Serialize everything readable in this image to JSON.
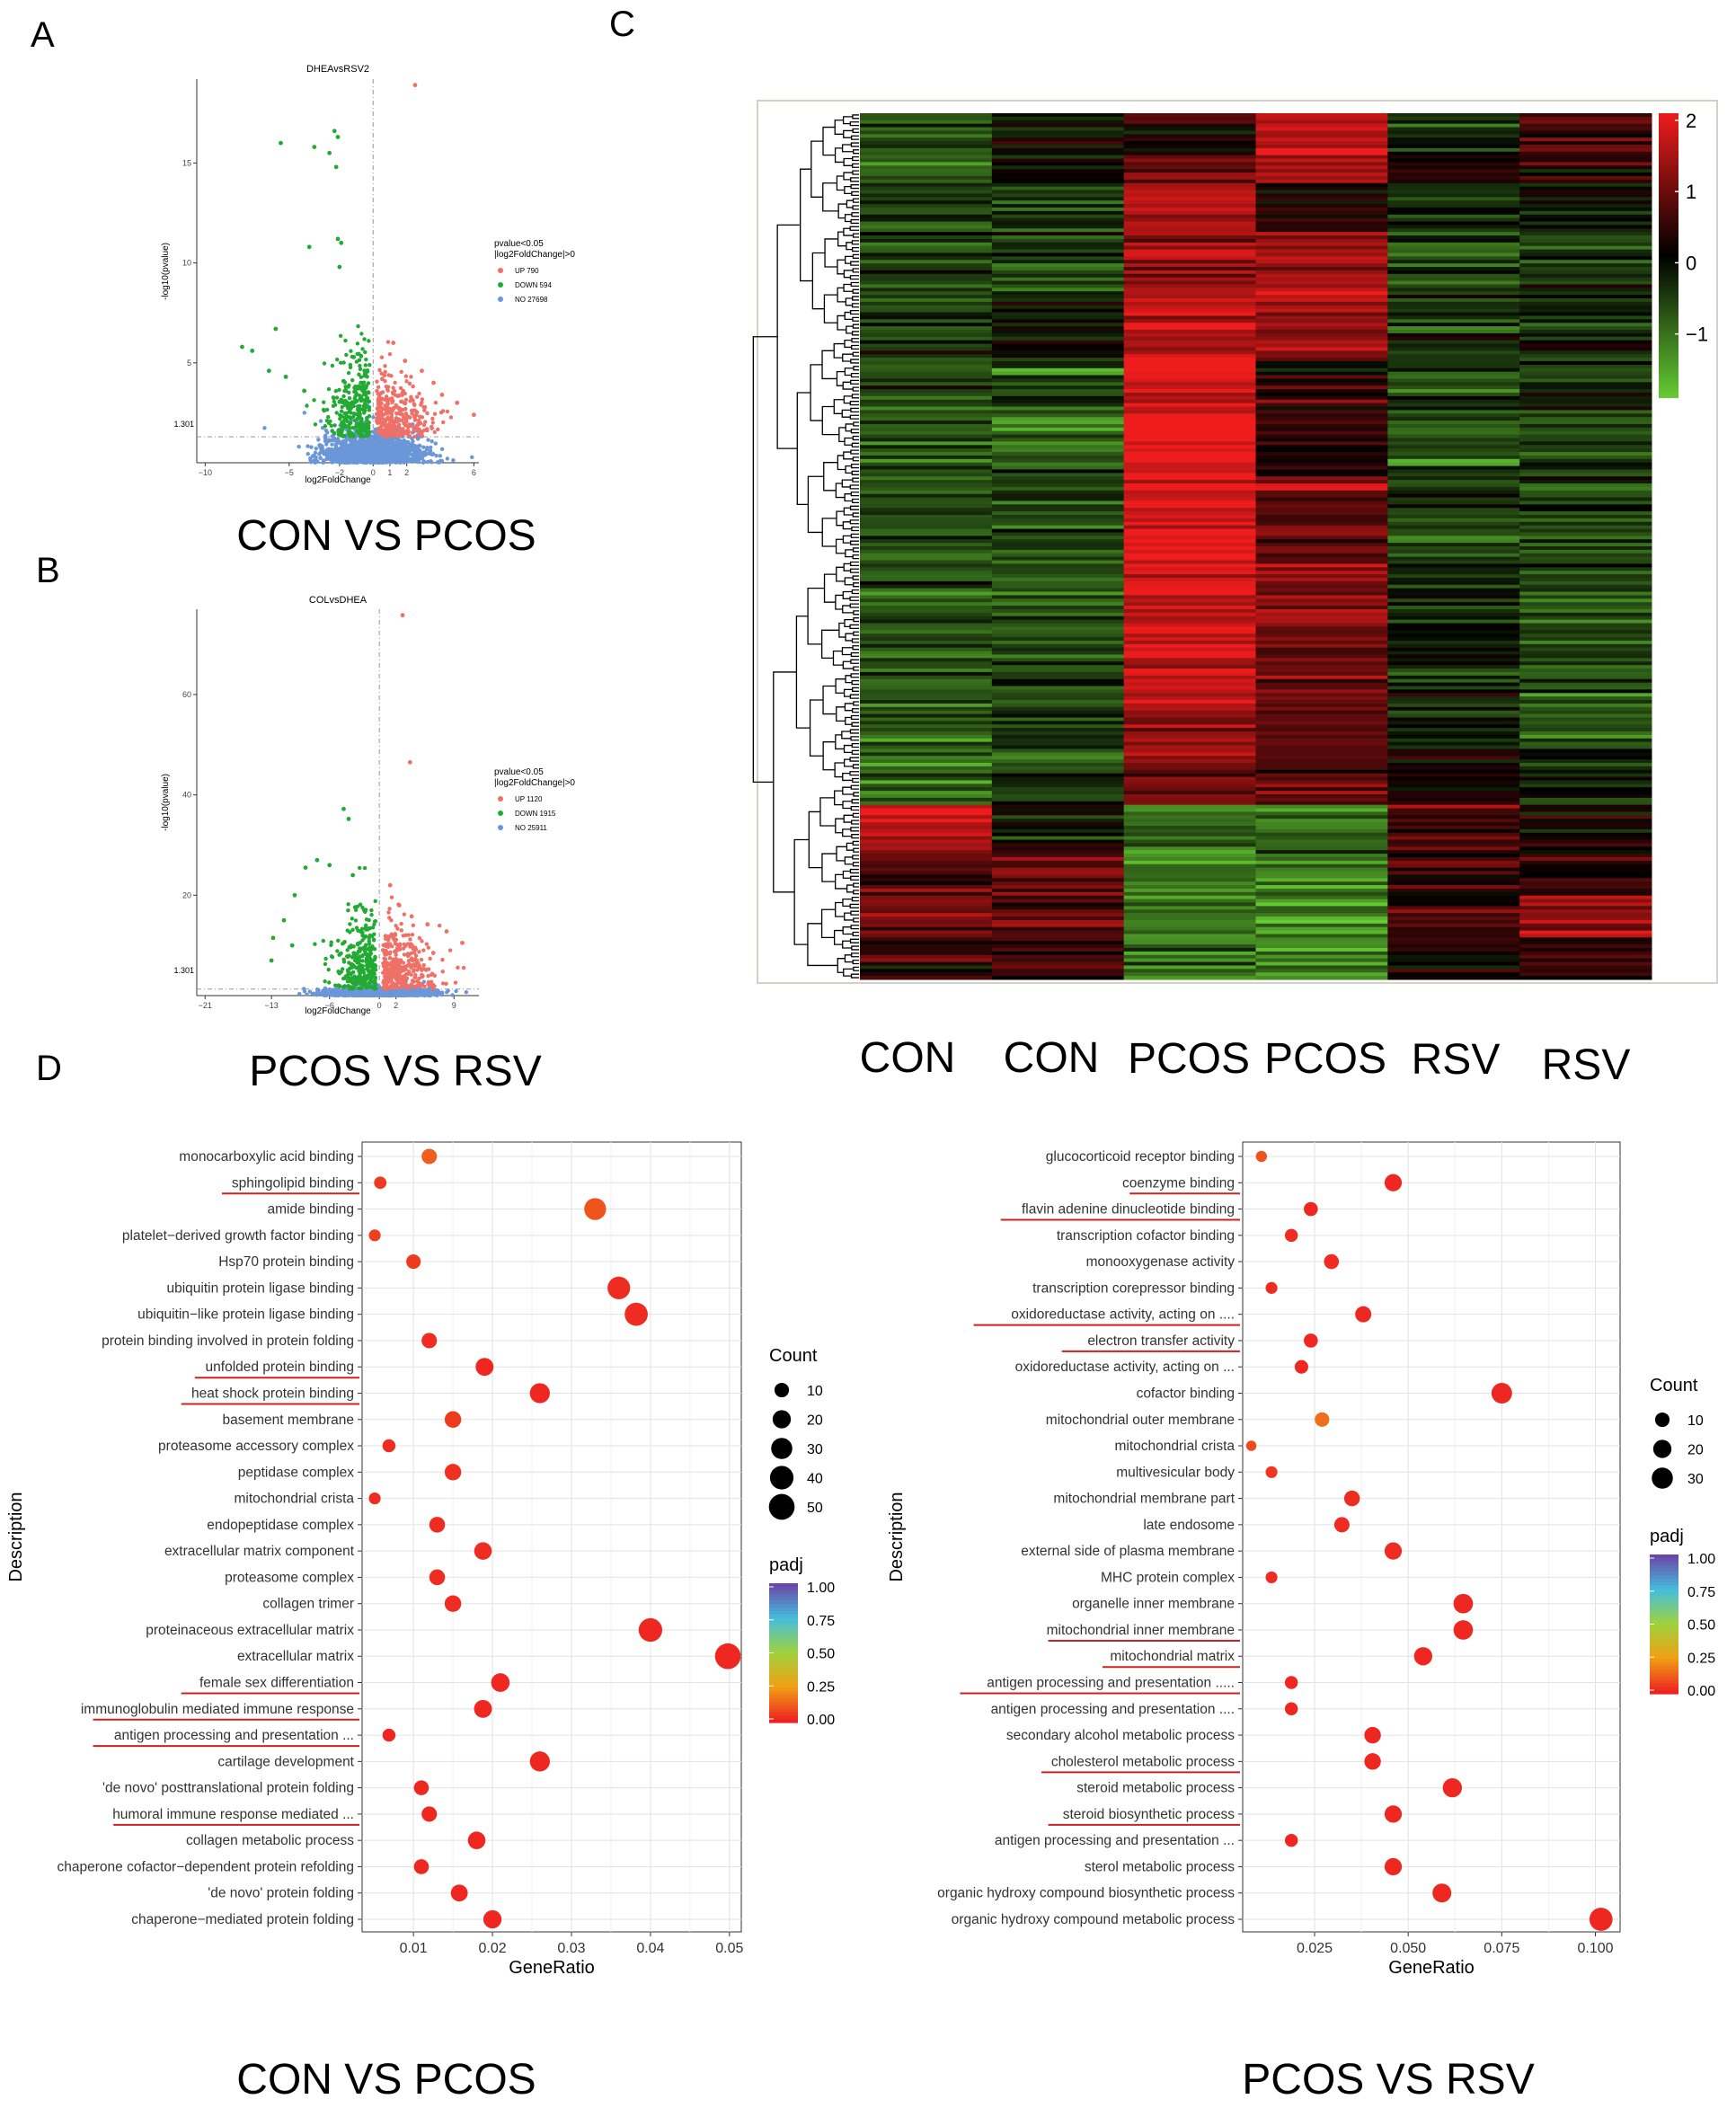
{
  "panel_letters": [
    "A",
    "B",
    "C",
    "D"
  ],
  "colors": {
    "up": "#ee7066",
    "down": "#22aa33",
    "no": "#6b96d8",
    "heat_low": "#66cc33",
    "heat_mid": "#000000",
    "heat_high": "#ee1c1c",
    "padj_low": "#ee2222",
    "padj_high": "#6a47a8"
  },
  "chart_data": [
    {
      "id": "A",
      "type": "scatter",
      "title": "DHEAvsRSV2",
      "xlabel": "log2FoldChange",
      "ylabel": "-log10(pvalue)",
      "xlim": [
        -10.5,
        6.3
      ],
      "ylim": [
        0,
        19.2
      ],
      "xticks": [
        -10,
        -5,
        -2,
        0,
        1,
        2,
        6
      ],
      "yticks": [
        5,
        10,
        15
      ],
      "threshold_label": "1.301",
      "threshold_y": 1.301,
      "legend_title": [
        "pvalue<0.05",
        "|log2FoldChange|>0"
      ],
      "legend": [
        {
          "name": "UP 790",
          "kind": "up"
        },
        {
          "name": "DOWN 594",
          "kind": "down"
        },
        {
          "name": "NO 27698",
          "kind": "no"
        }
      ],
      "caption": "CON VS PCOS",
      "points_up": [
        [
          2.5,
          18.9
        ],
        [
          1.2,
          6.0
        ],
        [
          1.9,
          5.1
        ],
        [
          2.9,
          4.6
        ],
        [
          3.6,
          4.0
        ],
        [
          4.1,
          3.4
        ],
        [
          5.0,
          3.0
        ],
        [
          6.0,
          2.4
        ]
      ],
      "points_down": [
        [
          -5.5,
          16.0
        ],
        [
          -2.3,
          16.6
        ],
        [
          -2.1,
          16.3
        ],
        [
          -2.6,
          15.5
        ],
        [
          -3.5,
          15.8
        ],
        [
          -2.2,
          14.8
        ],
        [
          -2.1,
          11.2
        ],
        [
          -1.9,
          11.0
        ],
        [
          -3.8,
          10.8
        ],
        [
          -2.0,
          9.8
        ],
        [
          -5.8,
          6.7
        ],
        [
          -7.2,
          5.6
        ],
        [
          -7.8,
          5.8
        ],
        [
          -6.2,
          4.6
        ],
        [
          -5.2,
          4.3
        ],
        [
          -4.1,
          3.6
        ]
      ]
    },
    {
      "id": "B",
      "type": "scatter",
      "title": "COLvsDHEA",
      "xlabel": "log2FoldChange",
      "ylabel": "-log10(pvalue)",
      "xlim": [
        -22,
        12
      ],
      "ylim": [
        0,
        77
      ],
      "xticks": [
        -21,
        -13,
        -6,
        0,
        2,
        9
      ],
      "yticks": [
        20,
        40,
        60
      ],
      "threshold_label": "1.301",
      "threshold_y": 1.301,
      "legend_title": [
        "pvalue<0.05",
        "|log2FoldChange|>0"
      ],
      "legend": [
        {
          "name": "UP 1120",
          "kind": "up"
        },
        {
          "name": "DOWN 1915",
          "kind": "down"
        },
        {
          "name": "NO 25911",
          "kind": "no"
        }
      ],
      "caption": "PCOS VS RSV",
      "points_up": [
        [
          2.8,
          75.8
        ],
        [
          3.7,
          46.5
        ],
        [
          1.3,
          22.0
        ],
        [
          2.4,
          18.0
        ],
        [
          3.9,
          15.8
        ],
        [
          5.8,
          14.2
        ],
        [
          8.1,
          12.8
        ],
        [
          10.0,
          10.5
        ],
        [
          6.5,
          8.5
        ],
        [
          4.5,
          7.0
        ]
      ],
      "points_down": [
        [
          -4.3,
          37.2
        ],
        [
          -3.7,
          35.2
        ],
        [
          -8.9,
          25.5
        ],
        [
          -7.5,
          27.0
        ],
        [
          -6.0,
          26.0
        ],
        [
          -3.2,
          24.0
        ],
        [
          -10.2,
          20.0
        ],
        [
          -11.5,
          15.0
        ],
        [
          -12.8,
          11.5
        ],
        [
          -10.5,
          10.0
        ],
        [
          -13.0,
          7.0
        ],
        [
          -1.8,
          9.5
        ]
      ]
    },
    {
      "id": "C",
      "type": "heatmap",
      "columns": [
        "CON",
        "CON",
        "PCOS",
        "PCOS",
        "RSV",
        "RSV"
      ],
      "legend_ticks": [
        2,
        1,
        0,
        -1
      ],
      "legend_tick_labels": [
        "2",
        "1",
        "0",
        "−1"
      ],
      "vrange": [
        -1.9,
        2.1
      ],
      "cluster_blocks": [
        {
          "rows": 12,
          "values": [
            -0.6,
            -0.1,
            0.3,
            1.8,
            -0.4,
            0.6
          ]
        },
        {
          "rows": 8,
          "values": [
            -0.7,
            -0.4,
            1.0,
            1.6,
            0.1,
            0.2
          ]
        },
        {
          "rows": 14,
          "values": [
            -0.6,
            -0.7,
            1.7,
            0.3,
            -0.5,
            -0.1
          ]
        },
        {
          "rows": 20,
          "values": [
            -0.6,
            -0.6,
            1.3,
            1.4,
            -0.7,
            -0.5
          ]
        },
        {
          "rows": 16,
          "values": [
            -0.5,
            -0.1,
            1.6,
            1.3,
            -0.4,
            -0.3
          ]
        },
        {
          "rows": 34,
          "values": [
            -0.7,
            -0.8,
            2.0,
            0.4,
            -0.7,
            -0.5
          ]
        },
        {
          "rows": 24,
          "values": [
            -0.6,
            -0.7,
            1.9,
            0.9,
            -0.6,
            -0.6
          ]
        },
        {
          "rows": 38,
          "values": [
            -0.7,
            -0.6,
            1.8,
            1.1,
            -0.3,
            -0.6
          ]
        },
        {
          "rows": 16,
          "values": [
            -0.9,
            -0.6,
            1.2,
            0.9,
            -0.2,
            -0.9
          ]
        },
        {
          "rows": 16,
          "values": [
            -1.0,
            -0.6,
            1.0,
            0.8,
            0.1,
            -0.4
          ]
        },
        {
          "rows": 14,
          "values": [
            1.6,
            -0.1,
            -1.0,
            -1.1,
            0.6,
            0.2
          ]
        },
        {
          "rows": 12,
          "values": [
            0.8,
            0.9,
            -0.9,
            -1.2,
            0.5,
            0.4
          ]
        },
        {
          "rows": 12,
          "values": [
            0.9,
            0.7,
            -1.0,
            -1.5,
            0.6,
            1.3
          ]
        },
        {
          "rows": 12,
          "values": [
            0.5,
            0.5,
            -0.9,
            -1.3,
            0.2,
            0.4
          ]
        }
      ]
    },
    {
      "id": "D1",
      "type": "scatter",
      "subtype": "dotplot",
      "xlabel": "GeneRatio",
      "ylabel": "Description",
      "xlim": [
        0.0035,
        0.0515
      ],
      "xticks": [
        0.01,
        0.02,
        0.03,
        0.04,
        0.05
      ],
      "xtick_labels": [
        "0.01",
        "0.02",
        "0.03",
        "0.04",
        "0.05"
      ],
      "count_legend_title": "Count",
      "count_legend": [
        10,
        20,
        30,
        40,
        50
      ],
      "padj_legend_title": "padj",
      "padj_ticks": [
        "1.00",
        "0.75",
        "0.50",
        "0.25",
        "0.00"
      ],
      "caption": "CON VS PCOS",
      "terms": [
        {
          "label": "monocarboxylic acid binding",
          "x": 0.012,
          "count": 12,
          "padj": 0.12,
          "underline": false
        },
        {
          "label": "sphingolipid binding",
          "x": 0.0058,
          "count": 6,
          "padj": 0.05,
          "underline": true
        },
        {
          "label": "amide binding",
          "x": 0.033,
          "count": 33,
          "padj": 0.1,
          "underline": false
        },
        {
          "label": "platelet−derived growth factor binding",
          "x": 0.0051,
          "count": 5,
          "padj": 0.06,
          "underline": false
        },
        {
          "label": "Hsp70 protein binding",
          "x": 0.01,
          "count": 10,
          "padj": 0.05,
          "underline": false
        },
        {
          "label": "ubiquitin protein ligase binding",
          "x": 0.036,
          "count": 36,
          "padj": 0.02,
          "underline": false
        },
        {
          "label": "ubiquitin−like protein ligase binding",
          "x": 0.0382,
          "count": 38,
          "padj": 0.02,
          "underline": false
        },
        {
          "label": "protein binding involved in protein folding",
          "x": 0.012,
          "count": 12,
          "padj": 0.02,
          "underline": false
        },
        {
          "label": "unfolded protein binding",
          "x": 0.019,
          "count": 19,
          "padj": 0.01,
          "underline": true
        },
        {
          "label": "heat shock protein binding",
          "x": 0.026,
          "count": 26,
          "padj": 0.01,
          "underline": true
        },
        {
          "label": "basement membrane",
          "x": 0.015,
          "count": 15,
          "padj": 0.05,
          "underline": false
        },
        {
          "label": "proteasome accessory complex",
          "x": 0.0069,
          "count": 7,
          "padj": 0.02,
          "underline": false
        },
        {
          "label": "peptidase complex",
          "x": 0.015,
          "count": 15,
          "padj": 0.03,
          "underline": false
        },
        {
          "label": "mitochondrial crista",
          "x": 0.0051,
          "count": 5,
          "padj": 0.02,
          "underline": false
        },
        {
          "label": "endopeptidase complex",
          "x": 0.013,
          "count": 13,
          "padj": 0.02,
          "underline": false
        },
        {
          "label": "extracellular matrix component",
          "x": 0.0188,
          "count": 18,
          "padj": 0.02,
          "underline": false
        },
        {
          "label": "proteasome complex",
          "x": 0.013,
          "count": 13,
          "padj": 0.02,
          "underline": false
        },
        {
          "label": "collagen trimer",
          "x": 0.015,
          "count": 15,
          "padj": 0.02,
          "underline": false
        },
        {
          "label": "proteinaceous extracellular matrix",
          "x": 0.04,
          "count": 40,
          "padj": 0.01,
          "underline": false
        },
        {
          "label": "extracellular matrix",
          "x": 0.0498,
          "count": 50,
          "padj": 0.01,
          "underline": false
        },
        {
          "label": "female sex differentiation",
          "x": 0.021,
          "count": 21,
          "padj": 0.01,
          "underline": true
        },
        {
          "label": "immunoglobulin mediated immune response",
          "x": 0.0188,
          "count": 19,
          "padj": 0.01,
          "underline": true
        },
        {
          "label": "antigen processing and presentation ...",
          "x": 0.0069,
          "count": 7,
          "padj": 0.01,
          "underline": true
        },
        {
          "label": "cartilage development",
          "x": 0.026,
          "count": 26,
          "padj": 0.01,
          "underline": false
        },
        {
          "label": "'de novo' posttranslational protein folding",
          "x": 0.011,
          "count": 11,
          "padj": 0.01,
          "underline": false
        },
        {
          "label": "humoral immune response mediated ...",
          "x": 0.012,
          "count": 12,
          "padj": 0.01,
          "underline": true
        },
        {
          "label": "collagen metabolic process",
          "x": 0.018,
          "count": 18,
          "padj": 0.01,
          "underline": false
        },
        {
          "label": "chaperone cofactor−dependent protein refolding",
          "x": 0.011,
          "count": 11,
          "padj": 0.01,
          "underline": false
        },
        {
          "label": "'de novo' protein folding",
          "x": 0.0158,
          "count": 16,
          "padj": 0.01,
          "underline": false
        },
        {
          "label": "chaperone−mediated protein folding",
          "x": 0.02,
          "count": 20,
          "padj": 0.01,
          "underline": false
        }
      ]
    },
    {
      "id": "D2",
      "type": "scatter",
      "subtype": "dotplot",
      "xlabel": "GeneRatio",
      "ylabel": "Description",
      "xlim": [
        0.0058,
        0.1066
      ],
      "xticks": [
        0.025,
        0.05,
        0.075,
        0.1
      ],
      "xtick_labels": [
        "0.025",
        "0.050",
        "0.075",
        "0.100"
      ],
      "count_legend_title": "Count",
      "count_legend": [
        10,
        20,
        30
      ],
      "padj_legend_title": "padj",
      "padj_ticks": [
        "1.00",
        "0.75",
        "0.50",
        "0.25",
        "0.00"
      ],
      "caption": "PCOS VS RSV",
      "terms": [
        {
          "label": "glucocorticoid receptor binding",
          "x": 0.0108,
          "count": 4,
          "padj": 0.1,
          "underline": false
        },
        {
          "label": "coenzyme binding",
          "x": 0.046,
          "count": 17,
          "padj": 0.01,
          "underline": true
        },
        {
          "label": "flavin adenine dinucleotide binding",
          "x": 0.024,
          "count": 9,
          "padj": 0.01,
          "underline": true
        },
        {
          "label": "transcription cofactor binding",
          "x": 0.0188,
          "count": 7,
          "padj": 0.02,
          "underline": false
        },
        {
          "label": "monooxygenase activity",
          "x": 0.0295,
          "count": 11,
          "padj": 0.02,
          "underline": false
        },
        {
          "label": "transcription corepressor binding",
          "x": 0.0135,
          "count": 5,
          "padj": 0.02,
          "underline": false
        },
        {
          "label": "oxidoreductase activity, acting on ....",
          "x": 0.038,
          "count": 14,
          "padj": 0.01,
          "underline": true
        },
        {
          "label": "electron transfer activity",
          "x": 0.024,
          "count": 9,
          "padj": 0.01,
          "underline": true
        },
        {
          "label": "oxidoreductase activity, acting on ...",
          "x": 0.0215,
          "count": 8,
          "padj": 0.01,
          "underline": false
        },
        {
          "label": "cofactor binding",
          "x": 0.075,
          "count": 28,
          "padj": 0.01,
          "underline": false
        },
        {
          "label": "mitochondrial outer membrane",
          "x": 0.027,
          "count": 10,
          "padj": 0.15,
          "underline": false
        },
        {
          "label": "mitochondrial crista",
          "x": 0.0081,
          "count": 3,
          "padj": 0.08,
          "underline": false
        },
        {
          "label": "multivesicular body",
          "x": 0.0135,
          "count": 5,
          "padj": 0.04,
          "underline": false
        },
        {
          "label": "mitochondrial membrane part",
          "x": 0.035,
          "count": 13,
          "padj": 0.02,
          "underline": false
        },
        {
          "label": "late endosome",
          "x": 0.0323,
          "count": 12,
          "padj": 0.02,
          "underline": false
        },
        {
          "label": "external side of plasma membrane",
          "x": 0.046,
          "count": 17,
          "padj": 0.02,
          "underline": false
        },
        {
          "label": "MHC protein complex",
          "x": 0.0135,
          "count": 5,
          "padj": 0.02,
          "underline": false
        },
        {
          "label": "organelle inner membrane",
          "x": 0.0647,
          "count": 24,
          "padj": 0.01,
          "underline": false
        },
        {
          "label": "mitochondrial inner membrane",
          "x": 0.0647,
          "count": 24,
          "padj": 0.01,
          "underline": true
        },
        {
          "label": "mitochondrial matrix",
          "x": 0.054,
          "count": 20,
          "padj": 0.01,
          "underline": true
        },
        {
          "label": "antigen processing and presentation .....",
          "x": 0.0188,
          "count": 7,
          "padj": 0.01,
          "underline": true
        },
        {
          "label": "antigen processing and presentation ....",
          "x": 0.0188,
          "count": 7,
          "padj": 0.01,
          "underline": false
        },
        {
          "label": "secondary alcohol metabolic process",
          "x": 0.0405,
          "count": 15,
          "padj": 0.01,
          "underline": false
        },
        {
          "label": "cholesterol metabolic process",
          "x": 0.0405,
          "count": 15,
          "padj": 0.01,
          "underline": true
        },
        {
          "label": "steroid metabolic process",
          "x": 0.0618,
          "count": 23,
          "padj": 0.01,
          "underline": false
        },
        {
          "label": "steroid biosynthetic process",
          "x": 0.046,
          "count": 17,
          "padj": 0.01,
          "underline": true
        },
        {
          "label": "antigen processing and presentation ...",
          "x": 0.0188,
          "count": 7,
          "padj": 0.01,
          "underline": false
        },
        {
          "label": "sterol metabolic process",
          "x": 0.046,
          "count": 17,
          "padj": 0.01,
          "underline": false
        },
        {
          "label": "organic hydroxy compound biosynthetic process",
          "x": 0.059,
          "count": 22,
          "padj": 0.01,
          "underline": false
        },
        {
          "label": "organic hydroxy compound metabolic process",
          "x": 0.1015,
          "count": 38,
          "padj": 0.01,
          "underline": false
        }
      ]
    }
  ]
}
